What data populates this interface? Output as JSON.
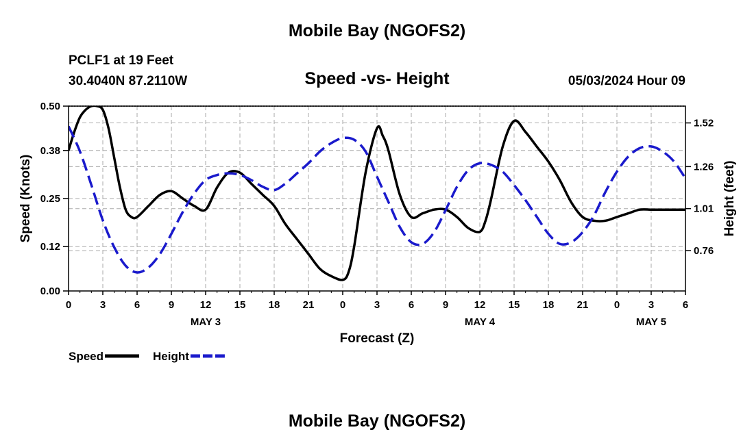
{
  "header": {
    "title": "Mobile Bay (NGOFS2)",
    "station": "PCLF1 at 19 Feet",
    "coordinates": "30.4040N  87.2110W",
    "subtitle": "Speed -vs- Height",
    "datetime": "05/03/2024 Hour 09"
  },
  "footer": {
    "title": "Mobile Bay (NGOFS2)"
  },
  "chart_data": {
    "type": "line",
    "title": "Speed -vs- Height",
    "xlabel": "Forecast (Z)",
    "ylabel_left": "Speed (Knots)",
    "ylabel_right": "Height (feet)",
    "x_unit": "hours",
    "xlim": [
      0,
      54
    ],
    "x_ticks": [
      0,
      3,
      6,
      9,
      12,
      15,
      18,
      21,
      24,
      27,
      30,
      33,
      36,
      39,
      42,
      45,
      48,
      51,
      54
    ],
    "x_tick_labels": [
      "0",
      "3",
      "6",
      "9",
      "12",
      "15",
      "18",
      "21",
      "0",
      "3",
      "6",
      "9",
      "12",
      "15",
      "18",
      "21",
      "0",
      "3",
      "6"
    ],
    "date_labels": [
      {
        "x": 12,
        "label": "MAY 3"
      },
      {
        "x": 36,
        "label": "MAY 4"
      },
      {
        "x": 51,
        "label": "MAY 5"
      }
    ],
    "ylim_left": [
      0,
      0.5
    ],
    "y_ticks_left": [
      0.0,
      0.12,
      0.25,
      0.38,
      0.5
    ],
    "y_tick_labels_left": [
      "0.00",
      "0.12",
      "0.25",
      "0.38",
      "0.50"
    ],
    "ylim_right": [
      0.52,
      1.62
    ],
    "y_ticks_right": [
      0.76,
      1.01,
      1.26,
      1.52
    ],
    "y_tick_labels_right": [
      "0.76",
      "1.01",
      "1.26",
      "1.52"
    ],
    "grid": true,
    "legend_placement": "bottom-left",
    "series": [
      {
        "name": "Speed",
        "axis": "left",
        "color": "#000000",
        "dash": "solid",
        "x": [
          0,
          0.5,
          1,
          1.5,
          2,
          2.5,
          3,
          3.5,
          4,
          4.5,
          5,
          5.5,
          6,
          7,
          8,
          9,
          10,
          11,
          12,
          13,
          14,
          15,
          16,
          17,
          18,
          19,
          20,
          21,
          22,
          23,
          24,
          24.5,
          25,
          26,
          27,
          27.5,
          28,
          29,
          30,
          31,
          32,
          33,
          34,
          35,
          36,
          36.5,
          37,
          38,
          39,
          40,
          41,
          42,
          43,
          44,
          45,
          46,
          47,
          48,
          49,
          50,
          51,
          52,
          53,
          54
        ],
        "y": [
          0.38,
          0.43,
          0.47,
          0.49,
          0.5,
          0.5,
          0.49,
          0.44,
          0.36,
          0.28,
          0.22,
          0.2,
          0.2,
          0.23,
          0.26,
          0.27,
          0.25,
          0.23,
          0.22,
          0.28,
          0.32,
          0.32,
          0.29,
          0.26,
          0.23,
          0.18,
          0.14,
          0.1,
          0.06,
          0.04,
          0.03,
          0.05,
          0.12,
          0.32,
          0.44,
          0.42,
          0.38,
          0.26,
          0.2,
          0.21,
          0.22,
          0.22,
          0.2,
          0.17,
          0.16,
          0.19,
          0.25,
          0.39,
          0.46,
          0.43,
          0.39,
          0.35,
          0.3,
          0.24,
          0.2,
          0.19,
          0.19,
          0.2,
          0.21,
          0.22,
          0.22,
          0.22,
          0.22,
          0.22
        ]
      },
      {
        "name": "Height",
        "axis": "right",
        "color": "#1a1acc",
        "dash": "dashed",
        "x": [
          0,
          1,
          2,
          3,
          4,
          5,
          6,
          7,
          8,
          9,
          10,
          11,
          12,
          13,
          14,
          15,
          16,
          17,
          18,
          19,
          20,
          21,
          22,
          23,
          24,
          25,
          26,
          27,
          28,
          29,
          30,
          31,
          32,
          33,
          34,
          35,
          36,
          37,
          38,
          39,
          40,
          41,
          42,
          43,
          44,
          45,
          46,
          47,
          48,
          49,
          50,
          51,
          52,
          53,
          54
        ],
        "y": [
          1.5,
          1.35,
          1.15,
          0.94,
          0.78,
          0.67,
          0.63,
          0.66,
          0.74,
          0.86,
          0.99,
          1.1,
          1.18,
          1.21,
          1.22,
          1.21,
          1.18,
          1.14,
          1.12,
          1.16,
          1.22,
          1.28,
          1.35,
          1.4,
          1.43,
          1.42,
          1.35,
          1.2,
          1.05,
          0.9,
          0.81,
          0.8,
          0.87,
          1.0,
          1.14,
          1.24,
          1.28,
          1.27,
          1.23,
          1.15,
          1.06,
          0.96,
          0.86,
          0.8,
          0.81,
          0.87,
          0.97,
          1.11,
          1.23,
          1.32,
          1.37,
          1.38,
          1.35,
          1.29,
          1.19
        ]
      }
    ]
  }
}
